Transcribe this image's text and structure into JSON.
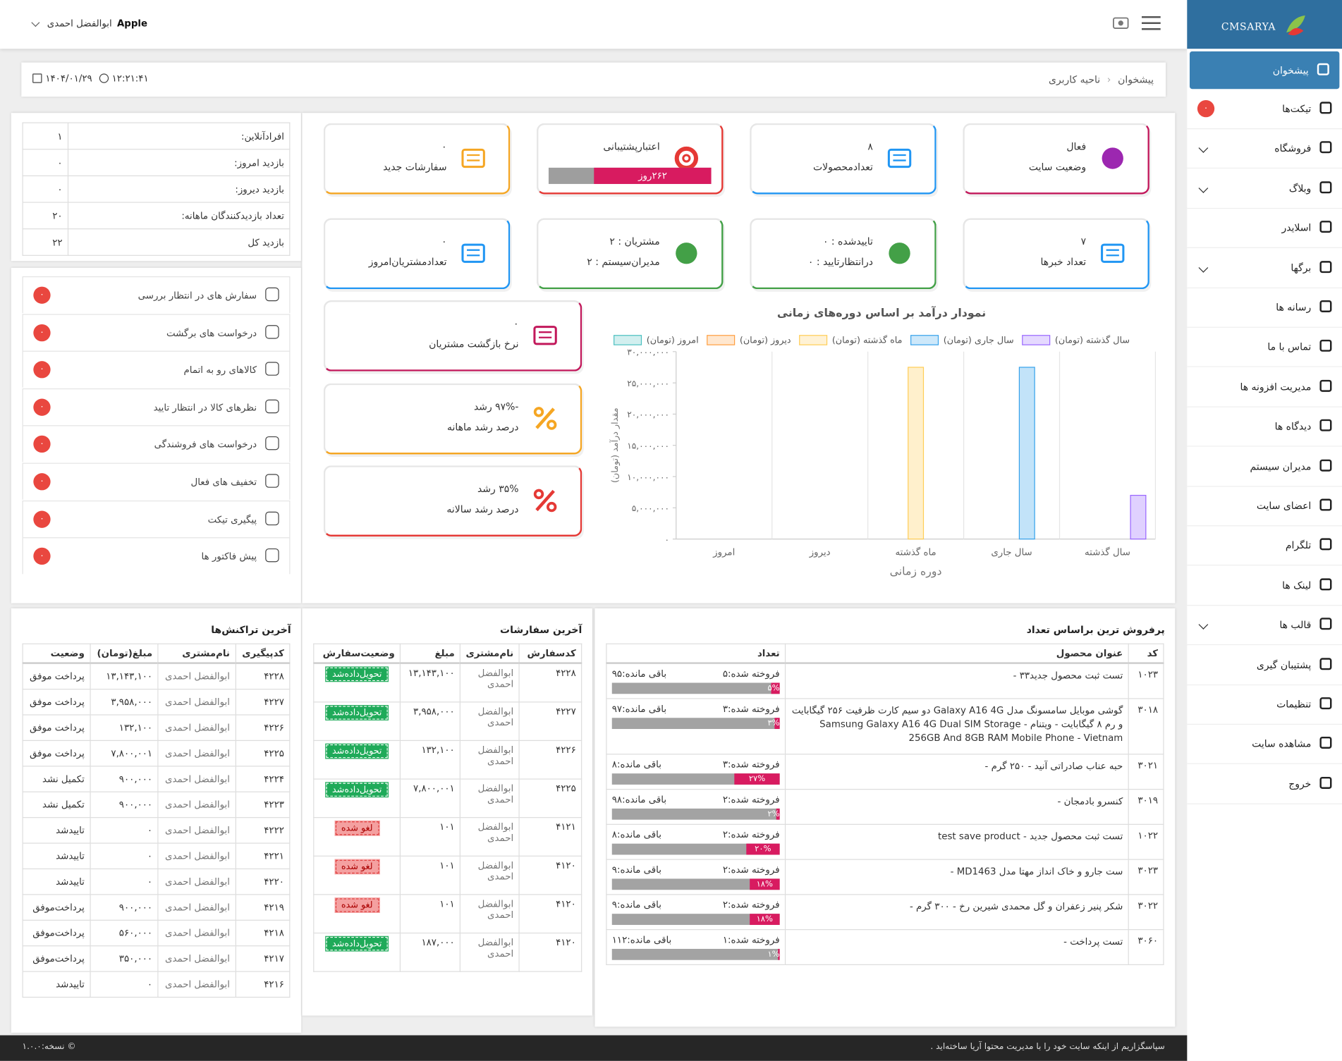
{
  "header": {
    "brand": "CMSARYA",
    "user": "ابوالفضل احمدی",
    "device": "Apple"
  },
  "breadcrumb": {
    "items": [
      "پیشخوان",
      "ناحیه کاربری"
    ],
    "time": "۱۲:۲۱:۴۱",
    "date": "۱۴۰۴/۰۱/۲۹"
  },
  "sidebar": [
    {
      "label": "پیشخوان",
      "active": true
    },
    {
      "label": "تیکت‌ها",
      "badge": "۰"
    },
    {
      "label": "فروشگاه",
      "expandable": true
    },
    {
      "label": "وبلاگ",
      "expandable": true
    },
    {
      "label": "اسلایدر"
    },
    {
      "label": "برگها",
      "expandable": true
    },
    {
      "label": "رسانه ها"
    },
    {
      "label": "تماس با ما"
    },
    {
      "label": "مدیریت افزونه ها"
    },
    {
      "label": "دیدگاه ها"
    },
    {
      "label": "مدیران سیستم"
    },
    {
      "label": "اعضای سایت"
    },
    {
      "label": "تلگرام"
    },
    {
      "label": "لینک ها"
    },
    {
      "label": "قالب ها",
      "expandable": true
    },
    {
      "label": "پشتیبان گیری"
    },
    {
      "label": "تنظیمات"
    },
    {
      "label": "مشاهده سایت"
    },
    {
      "label": "خروج"
    }
  ],
  "stats": {
    "rows": [
      [
        "افرادآنلاین:",
        "۱"
      ],
      [
        "بازدید امروز:",
        "۰"
      ],
      [
        "بازدید دیروز:",
        "۰"
      ],
      [
        "تعداد بازدیدکنندگان ماهانه:",
        "۲۰"
      ],
      [
        "بازدید کل",
        "۲۲"
      ]
    ]
  },
  "alerts": [
    {
      "label": "سفارش های در انتظار بررسی",
      "badge": "۰"
    },
    {
      "label": "درخواست های برگشت",
      "badge": "۰"
    },
    {
      "label": "کالاهای رو به اتمام",
      "badge": "۰"
    },
    {
      "label": "نظرهای کالا در انتظار تایید",
      "badge": "۰"
    },
    {
      "label": "درخواست های فروشندگی",
      "badge": "۰"
    },
    {
      "label": "تخفیف های فعال",
      "badge": "۰"
    },
    {
      "label": "پیگیری تیکت",
      "badge": "۰"
    },
    {
      "label": "پیش فاکتور ها",
      "badge": "۰"
    }
  ],
  "cards": [
    {
      "lines": [
        "فعال",
        "وضعیت سایت"
      ],
      "color": "#c2185b",
      "icon_color": "#9c27b0"
    },
    {
      "lines": [
        "۸",
        "تعدادمحصولات"
      ],
      "color": "#2196f3",
      "icon_color": "#2196f3"
    },
    {
      "lines": [
        "اعتبارپشتیبانی"
      ],
      "progress_label": "۲۶۲روز",
      "progress_pct": 72,
      "color": "#e53935",
      "icon_color": "#e53935"
    },
    {
      "lines": [
        "۰",
        "سفارشات جدید"
      ],
      "color": "#f5a623",
      "icon_color": "#f5a623"
    },
    {
      "lines": [
        "۷",
        "تعداد خبرها"
      ],
      "color": "#2196f3",
      "icon_color": "#2196f3"
    },
    {
      "lines": [
        "تاییدشده : ۰",
        "درانتظارتایید : ۰"
      ],
      "color": "#43a047",
      "icon_color": "#43a047"
    },
    {
      "lines": [
        "مشتریان : ۲",
        "مدیران‌سیستم : ۲"
      ],
      "color": "#43a047",
      "icon_color": "#43a047"
    },
    {
      "lines": [
        "۰",
        "تعدادمشتریان‌امروز"
      ],
      "color": "#2196f3",
      "icon_color": "#2196f3"
    },
    {
      "lines": [
        "۰",
        "نرخ بازگشت مشتریان"
      ],
      "color": "#c2185b",
      "icon_color": "#c2185b"
    },
    {
      "lines": [
        "-۹۷% رشد",
        "درصد رشد ماهانه"
      ],
      "color": "#f5a623",
      "icon_color": "#f5a623"
    },
    {
      "lines": [
        "۳۵% رشد",
        "درصد رشد سالانه"
      ],
      "color": "#e53935",
      "icon_color": "#e53935"
    }
  ],
  "chart_data": {
    "type": "bar",
    "title": "نمودار درآمد بر اساس دوره‌های زمانی",
    "categories": [
      "امروز",
      "دیروز",
      "ماه گذشته",
      "سال جاری",
      "سال گذشته"
    ],
    "series": [
      {
        "name": "سال گذشته (تومان)",
        "color": "#9966ff",
        "values": [
          null,
          null,
          null,
          null,
          7000000
        ]
      },
      {
        "name": "سال جاری (تومان)",
        "color": "#36a2eb",
        "values": [
          null,
          null,
          null,
          27500000,
          null
        ]
      },
      {
        "name": "ماه گذشته (تومان)",
        "color": "#ffcd56",
        "values": [
          null,
          null,
          27500000,
          null,
          null
        ]
      },
      {
        "name": "دیروز (تومان)",
        "color": "#ff9f40",
        "values": [
          null,
          0,
          null,
          null,
          null
        ]
      },
      {
        "name": "امروز (تومان)",
        "color": "#4bc0c0",
        "values": [
          0,
          null,
          null,
          null,
          null
        ]
      }
    ],
    "ylim": [
      0,
      30000000
    ],
    "yticks": [
      {
        "value": 0,
        "label": "۰"
      },
      {
        "value": 5000000,
        "label": "۵,۰۰۰,۰۰۰"
      },
      {
        "value": 10000000,
        "label": "۱۰,۰۰۰,۰۰۰"
      },
      {
        "value": 15000000,
        "label": "۱۵,۰۰۰,۰۰۰"
      },
      {
        "value": 20000000,
        "label": "۲۰,۰۰۰,۰۰۰"
      },
      {
        "value": 25000000,
        "label": "۲۵,۰۰۰,۰۰۰"
      },
      {
        "value": 30000000,
        "label": "۳۰,۰۰۰,۰۰۰"
      }
    ],
    "ylabel": "مقدار درآمد (تومان)",
    "xlabel": "دوره زمانی",
    "xgrid": true,
    "ygrid": false,
    "legend": "top"
  },
  "top_sellers": {
    "title": "پرفروش ترین براساس تعداد",
    "headers": [
      "کد",
      "عنوان محصول",
      "تعداد"
    ],
    "bar_color": "#d81b60",
    "rows": [
      {
        "code": "۱۰۲۳",
        "title": "تست ثبت محصول جدید۳۳ -",
        "sold": "فروخته شده:۵",
        "left": "باقی مانده:۹۵",
        "pct": 5,
        "pct_label": "۵%"
      },
      {
        "code": "۳۰۱۸",
        "title": "گوشی موبایل سامسونگ مدل Galaxy A16 4G دو سیم کارت ظرفیت ۲۵۶ گیگابایت و رم ۸ گیگابایت - ویتنام - Samsung Galaxy A16 4G Dual SIM Storage 256GB And 8GB RAM Mobile Phone - Vietnam",
        "sold": "فروخته شده:۳",
        "left": "باقی مانده:۹۷",
        "pct": 3,
        "pct_label": "۳%"
      },
      {
        "code": "۳۰۲۱",
        "title": "حبه عناب صادراتی آنید - ۲۵۰ گرم -",
        "sold": "فروخته شده:۳",
        "left": "باقی مانده:۸",
        "pct": 27,
        "pct_label": "۲۷%"
      },
      {
        "code": "۳۰۱۹",
        "title": "کنسرو بادمجان -",
        "sold": "فروخته شده:۲",
        "left": "باقی مانده:۹۸",
        "pct": 2,
        "pct_label": "۲%"
      },
      {
        "code": "۱۰۲۲",
        "title": "تست ثبت محصول جدید - test save product",
        "sold": "فروخته شده:۲",
        "left": "باقی مانده:۸",
        "pct": 20,
        "pct_label": "۲۰%"
      },
      {
        "code": "۳۰۲۳",
        "title": "ست جارو و خاک انداز مهتا مدل MD1463 -",
        "sold": "فروخته شده:۲",
        "left": "باقی مانده:۹",
        "pct": 18,
        "pct_label": "۱۸%"
      },
      {
        "code": "۳۰۲۲",
        "title": "شکر پنیر زعفران و گل محمدی شیرین رخ - ۳۰۰ گرم -",
        "sold": "فروخته شده:۲",
        "left": "باقی مانده:۹",
        "pct": 18,
        "pct_label": "۱۸%"
      },
      {
        "code": "۳۰۶۰",
        "title": "تست پرداخت -",
        "sold": "فروخته شده:۱",
        "left": "باقی مانده:۱۱۲",
        "pct": 1,
        "pct_label": "۱%"
      }
    ]
  },
  "orders": {
    "title": "آخرین سفارشات",
    "headers": [
      "کدسفارش",
      "نام‌مشتری",
      "مبلغ",
      "وضعیت‌سفارش"
    ],
    "rows": [
      {
        "cells": [
          "۴۲۲۸",
          "ابوالفضل احمدی",
          "۱۳,۱۴۳,۱۰۰"
        ],
        "status": "تحویل‌دادەشد",
        "status_color": "#1faa59"
      },
      {
        "cells": [
          "۴۲۲۷",
          "ابوالفضل احمدی",
          "۳,۹۵۸,۰۰۰"
        ],
        "status": "تحویل‌دادەشد",
        "status_color": "#1faa59"
      },
      {
        "cells": [
          "۴۲۲۶",
          "ابوالفضل احمدی",
          "۱۳۲,۱۰۰"
        ],
        "status": "تحویل‌دادەشد",
        "status_color": "#1faa59"
      },
      {
        "cells": [
          "۴۲۲۵",
          "ابوالفضل احمدی",
          "۷,۸۰۰,۰۰۱"
        ],
        "status": "تحویل‌دادەشد",
        "status_color": "#1faa59"
      },
      {
        "cells": [
          "۴۱۲۱",
          "ابوالفضل احمدی",
          "۱۰۱"
        ],
        "status": "لغو شده",
        "status_color": "#f4a0a0"
      },
      {
        "cells": [
          "۴۱۲۰",
          "ابوالفضل احمدی",
          "۱۰۱"
        ],
        "status": "لغو شده",
        "status_color": "#f4a0a0"
      },
      {
        "cells": [
          "۴۱۲۰",
          "ابوالفضل احمدی",
          "۱۰۱"
        ],
        "status": "لغو شده",
        "status_color": "#f4a0a0"
      },
      {
        "cells": [
          "۴۱۲۰",
          "ابوالفضل احمدی",
          "۱۸۷,۰۰۰"
        ],
        "status": "تحویل‌دادەشد",
        "status_color": "#1faa59"
      }
    ]
  },
  "transactions": {
    "title": "آخرین تراکنش‌ها",
    "headers": [
      "کدپیگیری",
      "نام‌مشتری",
      "مبلغ(تومان)",
      "وضعیت"
    ],
    "rows": [
      [
        "۴۲۲۸",
        "ابوالفضل احمدی",
        "۱۳,۱۴۳,۱۰۰",
        "پرداخت موفق"
      ],
      [
        "۴۲۲۷",
        "ابوالفضل احمدی",
        "۳,۹۵۸,۰۰۰",
        "پرداخت موفق"
      ],
      [
        "۴۲۲۶",
        "ابوالفضل احمدی",
        "۱۳۲,۱۰۰",
        "پرداخت موفق"
      ],
      [
        "۴۲۲۵",
        "ابوالفضل احمدی",
        "۷,۸۰۰,۰۰۱",
        "پرداخت موفق"
      ],
      [
        "۴۲۲۴",
        "ابوالفضل احمدی",
        "۹۰۰,۰۰۰",
        "تکمیل نشد"
      ],
      [
        "۴۲۲۳",
        "ابوالفضل احمدی",
        "۹۰۰,۰۰۰",
        "تکمیل نشد"
      ],
      [
        "۴۲۲۲",
        "ابوالفضل احمدی",
        "۰",
        "تاییدشد"
      ],
      [
        "۴۲۲۱",
        "ابوالفضل احمدی",
        "۰",
        "تاییدشد"
      ],
      [
        "۴۲۲۰",
        "ابوالفضل احمدی",
        "۰",
        "تاییدشد"
      ],
      [
        "۴۲۱۹",
        "ابوالفضل احمدی",
        "۹۰۰,۰۰۰",
        "پرداخت‌موفق"
      ],
      [
        "۴۲۱۸",
        "ابوالفضل احمدی",
        "۵۶۰,۰۰۰",
        "پرداخت‌موفق"
      ],
      [
        "۴۲۱۷",
        "ابوالفضل احمدی",
        "۳۵۰,۰۰۰",
        "پرداخت‌موفق"
      ],
      [
        "۴۲۱۶",
        "ابوالفضل احمدی",
        "۰",
        "تاییدشد"
      ]
    ]
  },
  "footer": {
    "message": "سپاسگزاریم از اینکه سایت خود را با مدیریت محتوا آریا ساخته‌اید .",
    "version": "© نسخه:۱.۰.۰"
  }
}
